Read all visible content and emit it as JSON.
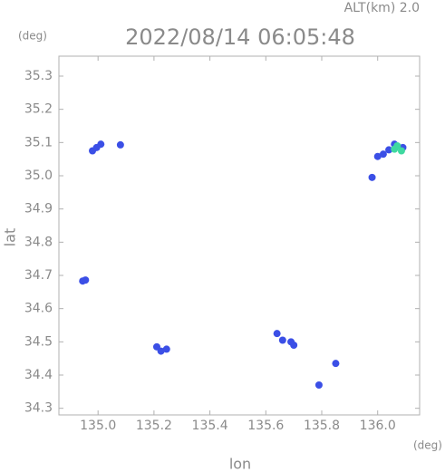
{
  "chart_data": {
    "type": "scatter",
    "title": "2022/08/14 06:05:48",
    "subtitle": "ALT(km) 2.0",
    "y_unit": "(deg)",
    "x_unit": "(deg)",
    "x_label": "lon",
    "y_label": "lat",
    "xlim": [
      134.86,
      136.15
    ],
    "ylim": [
      34.28,
      35.36
    ],
    "xticks": [
      {
        "value": 135,
        "label": "135.0"
      },
      135.2,
      135.4,
      135.6,
      135.8,
      {
        "value": 136,
        "label": "136.0"
      }
    ],
    "yticks": [
      34.3,
      34.4,
      34.5,
      34.6,
      34.7,
      34.8,
      34.9,
      {
        "value": 35,
        "label": "35.0"
      },
      35.1,
      35.2,
      35.3
    ],
    "series": [
      {
        "color": "#3b4fe6",
        "x": [
          134.98,
          134.995,
          135.01,
          135.08,
          134.945,
          134.955,
          135.21,
          135.225,
          135.245,
          135.64,
          135.66,
          135.7,
          135.69,
          135.79,
          135.85,
          135.98,
          136.0,
          136.02,
          136.04,
          136.06,
          136.09
        ],
        "values": [
          35.075,
          35.085,
          35.095,
          35.093,
          34.683,
          34.686,
          34.485,
          34.472,
          34.478,
          34.525,
          34.505,
          34.49,
          34.5,
          34.37,
          34.435,
          34.995,
          35.058,
          35.065,
          35.078,
          35.095,
          35.085
        ]
      },
      {
        "color": "#3fd9a0",
        "x": [
          136.06,
          136.07,
          136.085
        ],
        "values": [
          35.08,
          35.09,
          35.075
        ]
      }
    ]
  }
}
